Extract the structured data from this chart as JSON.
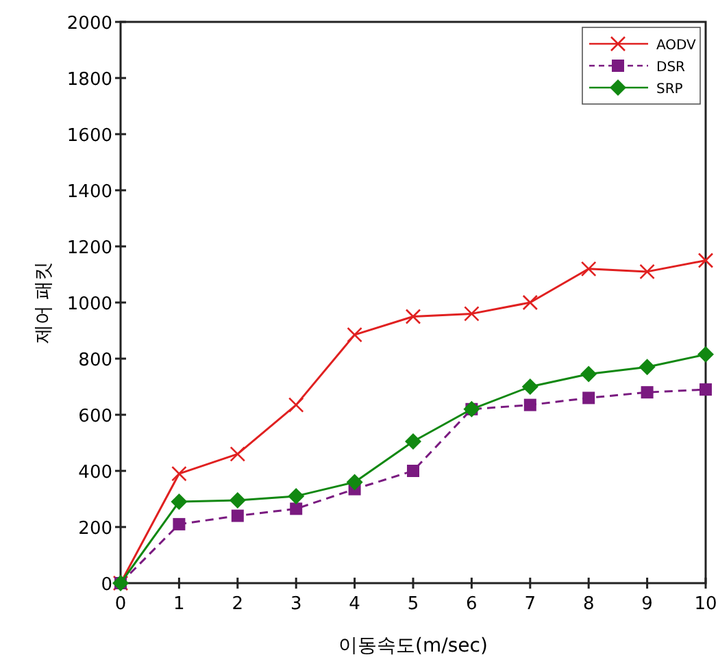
{
  "chart_data": {
    "type": "line",
    "xlabel": "이동속도(m/sec)",
    "ylabel": "제어 패킷",
    "x": [
      0,
      1,
      2,
      3,
      4,
      5,
      6,
      7,
      8,
      9,
      10
    ],
    "xlim": [
      0,
      10
    ],
    "xticks": [
      0,
      1,
      2,
      3,
      4,
      5,
      6,
      7,
      8,
      9,
      10
    ],
    "ylim": [
      0,
      2000
    ],
    "yticks": [
      0,
      200,
      400,
      600,
      800,
      1000,
      1200,
      1400,
      1600,
      1800,
      2000
    ],
    "legend": "top right",
    "grid": false,
    "series": [
      {
        "name": "AODV",
        "color": "#e02020",
        "marker": "cross",
        "line_style": "solid",
        "values": [
          0,
          390,
          460,
          635,
          885,
          950,
          960,
          1000,
          1120,
          1110,
          1150
        ]
      },
      {
        "name": "DSR",
        "color": "#7a1a80",
        "marker": "square",
        "line_style": "dashed",
        "values": [
          0,
          210,
          240,
          265,
          335,
          400,
          620,
          635,
          660,
          680,
          690
        ]
      },
      {
        "name": "SRP",
        "color": "#118811",
        "marker": "diamond",
        "line_style": "solid",
        "values": [
          0,
          290,
          295,
          310,
          360,
          505,
          620,
          700,
          745,
          770,
          815
        ]
      }
    ]
  }
}
